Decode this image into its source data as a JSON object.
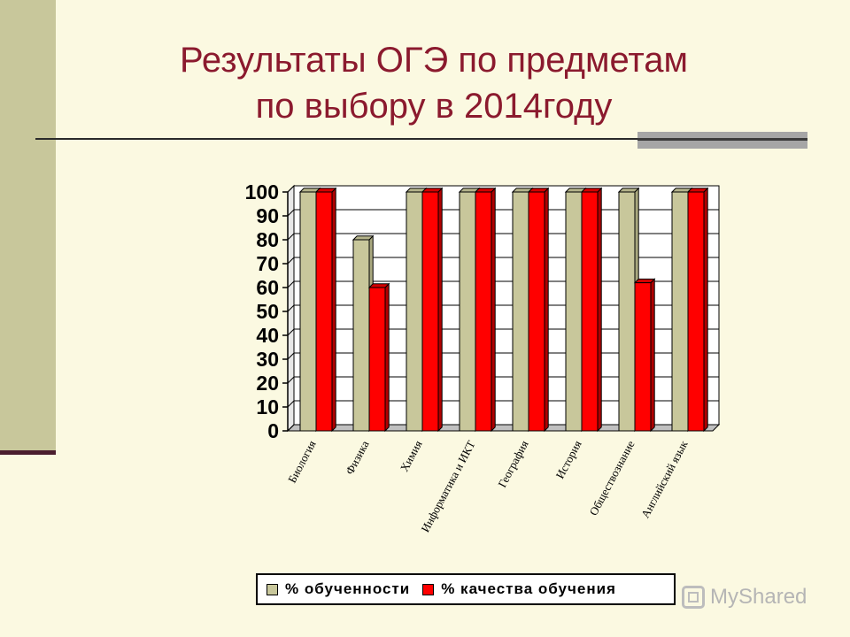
{
  "title": {
    "line1": "Результаты ОГЭ по предметам",
    "line2": "по выбору в 2014году"
  },
  "legend": {
    "series1": "% обученности",
    "series2": "% качества обучения"
  },
  "watermark": {
    "text": "MyShared"
  },
  "colors": {
    "background": "#FBF9E1",
    "title": "#8B1A2E",
    "series1": "#C8C79B",
    "series2": "#FF0000"
  },
  "chart_data": {
    "type": "bar",
    "categories": [
      "Биология",
      "Физика",
      "Химия",
      "Информатика и ИКТ",
      "География",
      "История",
      "Обществознание",
      "Английский язык"
    ],
    "series": [
      {
        "name": "% обученности",
        "values": [
          100,
          80,
          100,
          100,
          100,
          100,
          100,
          100
        ]
      },
      {
        "name": "% качества обучения",
        "values": [
          100,
          60,
          100,
          100,
          100,
          100,
          62,
          100
        ]
      }
    ],
    "y_ticks": [
      "0",
      "10",
      "20",
      "30",
      "40",
      "50",
      "60",
      "70",
      "80",
      "90",
      "100"
    ],
    "ylim": [
      0,
      100
    ],
    "grid": true,
    "legend_position": "bottom"
  }
}
